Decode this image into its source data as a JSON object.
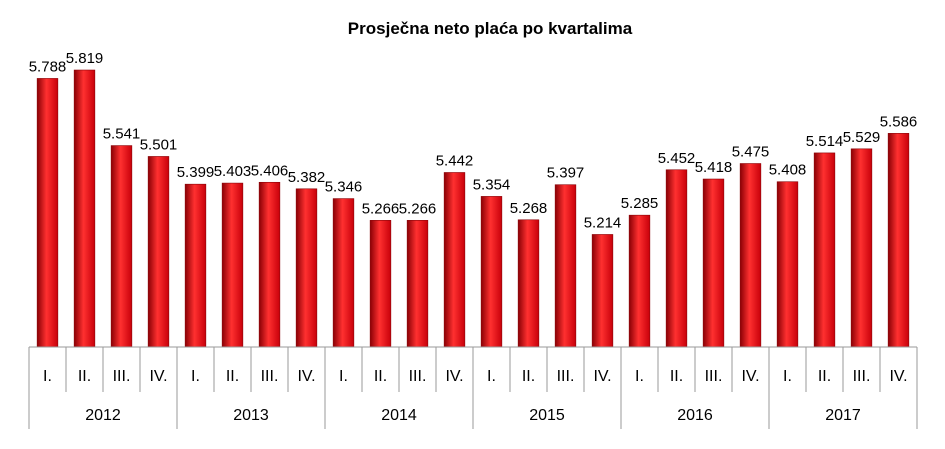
{
  "chart_data": {
    "type": "bar",
    "title": "Prosječna neto plaća po kvartalima",
    "xlabel": "",
    "ylabel": "",
    "years": [
      "2012",
      "2013",
      "2014",
      "2015",
      "2016",
      "2017"
    ],
    "categories": [
      "I.",
      "II.",
      "III.",
      "IV.",
      "I.",
      "II.",
      "III.",
      "IV.",
      "I.",
      "II.",
      "III.",
      "IV.",
      "I.",
      "II.",
      "III.",
      "IV.",
      "I.",
      "II.",
      "III.",
      "IV.",
      "I.",
      "II.",
      "III.",
      "IV."
    ],
    "values": [
      5788,
      5819,
      5541,
      5501,
      5399,
      5403,
      5406,
      5382,
      5346,
      5266,
      5266,
      5442,
      5354,
      5268,
      5397,
      5214,
      5285,
      5452,
      5418,
      5475,
      5408,
      5514,
      5529,
      5586
    ],
    "value_labels": [
      "5.788",
      "5.819",
      "5.541",
      "5.501",
      "5.399",
      "5.403",
      "5.406",
      "5.382",
      "5.346",
      "5.266",
      "5.266",
      "5.442",
      "5.354",
      "5.268",
      "5.397",
      "5.214",
      "5.285",
      "5.452",
      "5.418",
      "5.475",
      "5.408",
      "5.514",
      "5.529",
      "5.586"
    ],
    "ylim": [
      4800,
      5900
    ],
    "grid": false,
    "legend": "none",
    "bar_color": "#c8000a",
    "bar_color_highlight": "#ff3030",
    "bar_color_shadow": "#8a0005"
  }
}
